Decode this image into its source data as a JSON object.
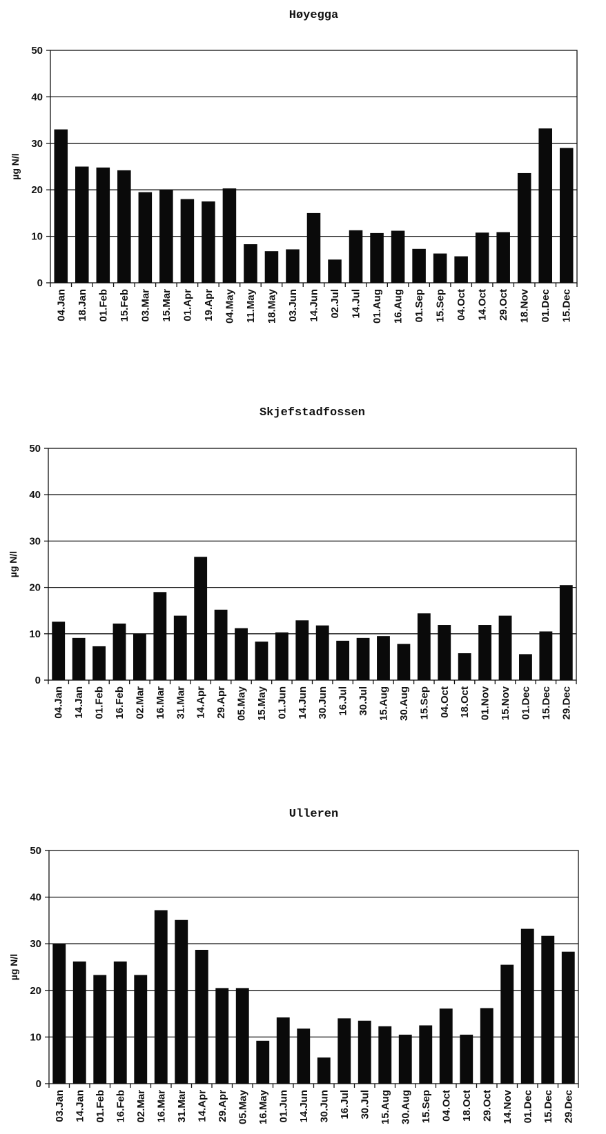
{
  "chart_data": [
    {
      "type": "bar",
      "title": "Høyegga",
      "ylabel": "µg N/l",
      "ylim": [
        0,
        50
      ],
      "yticks": [
        "0",
        "10",
        "20",
        "30",
        "40",
        "50"
      ],
      "grid": true,
      "categories": [
        "04.Jan",
        "18.Jan",
        "01.Feb",
        "15.Feb",
        "03.Mar",
        "15.Mar",
        "01.Apr",
        "19.Apr",
        "04.May",
        "11.May",
        "18.May",
        "03.Jun",
        "14.Jun",
        "02.Jul",
        "14.Jul",
        "01.Aug",
        "16.Aug",
        "01.Sep",
        "15.Sep",
        "04.Oct",
        "14.Oct",
        "29.Oct",
        "18.Nov",
        "01.Dec",
        "15.Dec"
      ],
      "values": [
        33,
        25,
        24.8,
        24.2,
        19.5,
        20,
        18,
        17.5,
        20.3,
        8.3,
        6.8,
        7.2,
        15,
        5,
        11.3,
        10.7,
        11.2,
        7.3,
        6.3,
        5.7,
        10.8,
        10.9,
        23.6,
        33.2,
        29
      ]
    },
    {
      "type": "bar",
      "title": "Skjefstadfossen",
      "ylabel": "µg N/l",
      "ylim": [
        0,
        50
      ],
      "yticks": [
        "0",
        "10",
        "20",
        "30",
        "40",
        "50"
      ],
      "grid": true,
      "categories": [
        "04.Jan",
        "14.Jan",
        "01.Feb",
        "16.Feb",
        "02.Mar",
        "16.Mar",
        "31.Mar",
        "14.Apr",
        "29.Apr",
        "05.May",
        "15.May",
        "01.Jun",
        "14.Jun",
        "30.Jun",
        "16.Jul",
        "30.Jul",
        "15.Aug",
        "30.Aug",
        "15.Sep",
        "04.Oct",
        "18.Oct",
        "01.Nov",
        "15.Nov",
        "01.Dec",
        "15.Dec",
        "29.Dec"
      ],
      "values": [
        12.6,
        9.1,
        7.3,
        12.2,
        10,
        19,
        13.9,
        26.6,
        15.2,
        11.2,
        8.3,
        10.3,
        12.9,
        11.8,
        8.5,
        9.1,
        9.5,
        7.8,
        14.4,
        11.9,
        5.8,
        11.9,
        13.9,
        5.6,
        10.5,
        20.5
      ]
    },
    {
      "type": "bar",
      "title": "Ulleren",
      "ylabel": "µg N/l",
      "ylim": [
        0,
        50
      ],
      "yticks": [
        "0",
        "10",
        "20",
        "30",
        "40",
        "50"
      ],
      "grid": true,
      "categories": [
        "03.Jan",
        "14.Jan",
        "01.Feb",
        "16.Feb",
        "02.Mar",
        "16.Mar",
        "31.Mar",
        "14.Apr",
        "29.Apr",
        "05.May",
        "16.May",
        "01.Jun",
        "14.Jun",
        "30.Jun",
        "16.Jul",
        "30.Jul",
        "15.Aug",
        "30.Aug",
        "15.Sep",
        "04.Oct",
        "18.Oct",
        "29.Oct",
        "14.Nov",
        "01.Dec",
        "15.Dec",
        "29.Dec"
      ],
      "values": [
        30,
        26.2,
        23.3,
        26.2,
        23.3,
        37.2,
        35.1,
        28.7,
        20.5,
        20.5,
        9.2,
        14.2,
        11.8,
        5.6,
        14,
        13.5,
        12.3,
        10.5,
        12.5,
        16.1,
        10.5,
        16.2,
        25.5,
        33.2,
        31.7,
        28.3
      ]
    }
  ]
}
